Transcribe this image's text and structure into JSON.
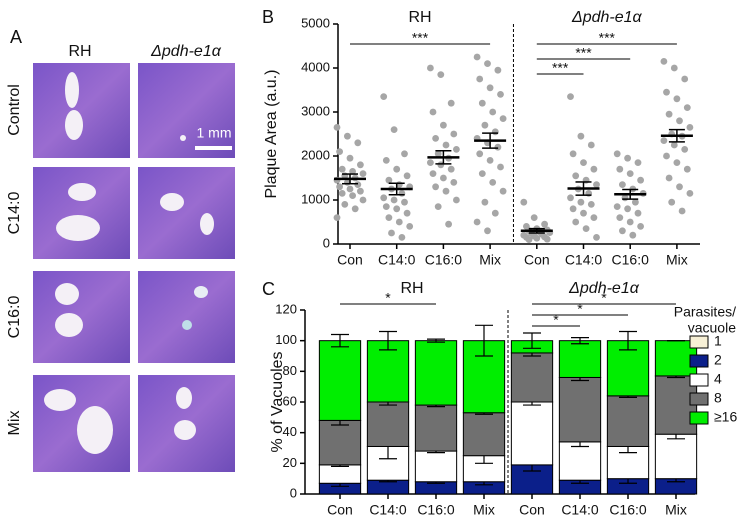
{
  "panel_a": {
    "label": "A",
    "columns": [
      "RH",
      "Δpdh-e1α"
    ],
    "rows": [
      "Control",
      "C14:0",
      "C16:0",
      "Mix"
    ],
    "scale_bar": "1 mm"
  },
  "chart_data": [
    {
      "type": "dotplot",
      "label": "B",
      "group_titles": [
        "RH",
        "Δpdh-e1α"
      ],
      "ylabel": "Plaque Area (a.u.)",
      "categories": [
        "Con",
        "C14:0",
        "C16:0",
        "Mix",
        "Con",
        "C14:0",
        "C16:0",
        "Mix"
      ],
      "points": [
        [
          2650,
          2450,
          2300,
          2100,
          1950,
          1800,
          1700,
          1650,
          1600,
          1550,
          1500,
          1450,
          1400,
          1350,
          1300,
          1250,
          1200,
          1150,
          1100,
          1000,
          900,
          800,
          600
        ],
        [
          3350,
          2600,
          2050,
          1900,
          1700,
          1550,
          1450,
          1350,
          1300,
          1250,
          1150,
          1050,
          1000,
          950,
          850,
          800,
          700,
          600,
          500,
          400,
          250,
          150
        ],
        [
          4000,
          3850,
          3200,
          3000,
          2700,
          2500,
          2400,
          2250,
          2150,
          2050,
          1950,
          1850,
          1800,
          1700,
          1600,
          1500,
          1400,
          1300,
          1200,
          1000,
          850,
          450
        ],
        [
          4250,
          4100,
          3950,
          3750,
          3550,
          3400,
          3200,
          3000,
          2850,
          2700,
          2550,
          2400,
          2300,
          2200,
          2050,
          1900,
          1750,
          1600,
          1400,
          1200,
          950,
          700,
          500,
          300
        ],
        [
          950,
          600,
          450,
          400,
          350,
          320,
          300,
          280,
          260,
          240,
          220,
          200,
          180,
          160,
          150,
          130,
          110,
          100
        ],
        [
          3350,
          2450,
          2250,
          2050,
          1850,
          1700,
          1550,
          1450,
          1350,
          1250,
          1150,
          1050,
          950,
          900,
          800,
          700,
          600,
          500,
          350,
          150
        ],
        [
          2050,
          1950,
          1850,
          1700,
          1600,
          1450,
          1350,
          1250,
          1150,
          1050,
          950,
          850,
          800,
          700,
          600,
          500,
          400,
          300,
          200
        ],
        [
          4150,
          4000,
          3750,
          3450,
          3300,
          3100,
          2950,
          2800,
          2650,
          2500,
          2450,
          2350,
          2250,
          2150,
          2000,
          1850,
          1700,
          1500,
          1300,
          1150,
          950,
          750
        ]
      ],
      "means": [
        1480,
        1250,
        1970,
        2350,
        300,
        1260,
        1130,
        2460
      ],
      "sems": [
        110,
        130,
        150,
        170,
        50,
        150,
        110,
        140
      ],
      "point_color": "#a6a6a6",
      "ylim": [
        0,
        5000
      ],
      "yticks": [
        0,
        1000,
        2000,
        3000,
        4000,
        5000
      ],
      "brackets": [
        {
          "from": 0,
          "to": 3,
          "label": "***"
        },
        {
          "from": 4,
          "to": 7,
          "label": "***"
        },
        {
          "from": 4,
          "to": 6,
          "label": "***"
        },
        {
          "from": 4,
          "to": 5,
          "label": "***"
        }
      ]
    },
    {
      "type": "stacked_bar",
      "label": "C",
      "group_titles": [
        "RH",
        "Δpdh-e1α"
      ],
      "ylabel": "% of Vacuoles",
      "categories": [
        "Con",
        "C14:0",
        "C16:0",
        "Mix",
        "Con",
        "C14:0",
        "C16:0",
        "Mix"
      ],
      "series": [
        {
          "name": "1",
          "color": "#f7f0d6",
          "values": [
            0,
            0,
            0,
            0,
            0,
            0,
            0,
            0
          ]
        },
        {
          "name": "2",
          "color": "#0b1f8a",
          "values": [
            7,
            9,
            8,
            8,
            19,
            9,
            10,
            10
          ],
          "errors": [
            2,
            1,
            1,
            2,
            4,
            2,
            3,
            2
          ]
        },
        {
          "name": "4",
          "color": "#ffffff",
          "values": [
            12,
            22,
            20,
            17,
            41,
            25,
            21,
            29
          ],
          "errors": [
            1,
            8,
            1,
            5,
            2,
            3,
            4,
            3
          ]
        },
        {
          "name": "8",
          "color": "#707070",
          "values": [
            29,
            29,
            30,
            28,
            32,
            42,
            33,
            38
          ],
          "errors": [
            3,
            2,
            1,
            1,
            2,
            2,
            1,
            1
          ]
        },
        {
          "name": "≥16",
          "color": "#00ee00",
          "values": [
            52,
            40,
            42,
            47,
            8,
            24,
            36,
            23
          ],
          "errors": [
            4,
            6,
            1,
            10,
            5,
            2,
            6,
            0
          ]
        }
      ],
      "ylim": [
        0,
        120
      ],
      "yticks": [
        0,
        20,
        40,
        60,
        80,
        100,
        120
      ],
      "legend_title": [
        "Parasites/",
        "vacuole"
      ],
      "brackets": [
        {
          "from": 0,
          "to": 2,
          "label": "*"
        },
        {
          "from": 4,
          "to": 7,
          "label": "*"
        },
        {
          "from": 4,
          "to": 6,
          "label": "*"
        },
        {
          "from": 4,
          "to": 5,
          "label": "*"
        }
      ]
    }
  ]
}
